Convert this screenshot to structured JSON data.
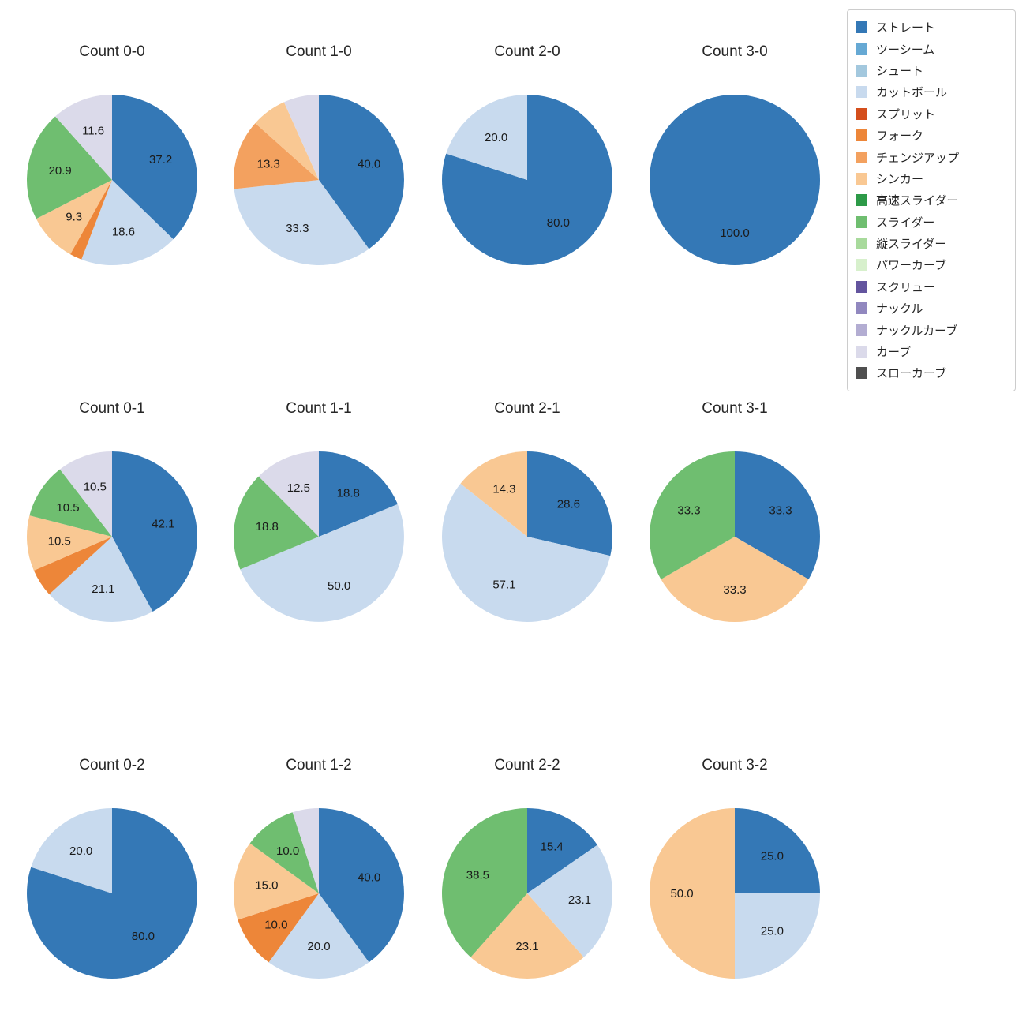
{
  "page": {
    "background": "#ffffff",
    "title_color": "#262626"
  },
  "palette": {
    "ストレート": "#3478b6",
    "ツーシーム": "#66a9d4",
    "シュート": "#a3c8de",
    "カットボール": "#c8daee",
    "スプリット": "#d44e1c",
    "フォーク": "#ed8639",
    "チェンジアップ": "#f3a15f",
    "シンカー": "#f9c893",
    "高速スライダー": "#2d9a48",
    "スライダー": "#6fbe70",
    "縦スライダー": "#a8da9c",
    "パワーカーブ": "#d7f0cc",
    "スクリュー": "#63549e",
    "ナックル": "#9188bf",
    "ナックルカーブ": "#b3add2",
    "カーブ": "#dbdaea",
    "スローカーブ": "#4f4f4f"
  },
  "legend": {
    "items": [
      {
        "label": "ストレート",
        "color": "#3478b6"
      },
      {
        "label": "ツーシーム",
        "color": "#66a9d4"
      },
      {
        "label": "シュート",
        "color": "#a3c8de"
      },
      {
        "label": "カットボール",
        "color": "#c8daee"
      },
      {
        "label": "スプリット",
        "color": "#d44e1c"
      },
      {
        "label": "フォーク",
        "color": "#ed8639"
      },
      {
        "label": "チェンジアップ",
        "color": "#f3a15f"
      },
      {
        "label": "シンカー",
        "color": "#f9c893"
      },
      {
        "label": "高速スライダー",
        "color": "#2d9a48"
      },
      {
        "label": "スライダー",
        "color": "#6fbe70"
      },
      {
        "label": "縦スライダー",
        "color": "#a8da9c"
      },
      {
        "label": "パワーカーブ",
        "color": "#d7f0cc"
      },
      {
        "label": "スクリュー",
        "color": "#63549e"
      },
      {
        "label": "ナックル",
        "color": "#9188bf"
      },
      {
        "label": "ナックルカーブ",
        "color": "#b3add2"
      },
      {
        "label": "カーブ",
        "color": "#dbdaea"
      },
      {
        "label": "スローカーブ",
        "color": "#4f4f4f"
      }
    ]
  },
  "chart_data": [
    {
      "type": "pie",
      "title": "Count 0-0",
      "start_angle_deg_from_top_clockwise": 0,
      "slices": [
        {
          "label": "ストレート",
          "value": 37.2,
          "show_label": true
        },
        {
          "label": "カットボール",
          "value": 18.6,
          "show_label": true
        },
        {
          "label": "フォーク",
          "value": 2.3,
          "show_label": false
        },
        {
          "label": "シンカー",
          "value": 9.3,
          "show_label": true
        },
        {
          "label": "スライダー",
          "value": 20.9,
          "show_label": true
        },
        {
          "label": "カーブ",
          "value": 11.6,
          "show_label": true
        }
      ]
    },
    {
      "type": "pie",
      "title": "Count 1-0",
      "start_angle_deg_from_top_clockwise": 0,
      "slices": [
        {
          "label": "ストレート",
          "value": 40.0,
          "show_label": true
        },
        {
          "label": "カットボール",
          "value": 33.3,
          "show_label": true
        },
        {
          "label": "チェンジアップ",
          "value": 13.3,
          "show_label": true
        },
        {
          "label": "シンカー",
          "value": 6.7,
          "show_label": false
        },
        {
          "label": "カーブ",
          "value": 6.7,
          "show_label": false
        }
      ]
    },
    {
      "type": "pie",
      "title": "Count 2-0",
      "start_angle_deg_from_top_clockwise": 0,
      "slices": [
        {
          "label": "ストレート",
          "value": 80.0,
          "show_label": true
        },
        {
          "label": "カットボール",
          "value": 20.0,
          "show_label": true
        }
      ]
    },
    {
      "type": "pie",
      "title": "Count 3-0",
      "start_angle_deg_from_top_clockwise": 0,
      "slices": [
        {
          "label": "ストレート",
          "value": 100.0,
          "show_label": true
        }
      ]
    },
    {
      "type": "pie",
      "title": "Count 0-1",
      "start_angle_deg_from_top_clockwise": 0,
      "slices": [
        {
          "label": "ストレート",
          "value": 42.1,
          "show_label": true
        },
        {
          "label": "カットボール",
          "value": 21.1,
          "show_label": true
        },
        {
          "label": "フォーク",
          "value": 5.3,
          "show_label": false
        },
        {
          "label": "シンカー",
          "value": 10.5,
          "show_label": true
        },
        {
          "label": "スライダー",
          "value": 10.5,
          "show_label": true
        },
        {
          "label": "カーブ",
          "value": 10.5,
          "show_label": true
        }
      ]
    },
    {
      "type": "pie",
      "title": "Count 1-1",
      "start_angle_deg_from_top_clockwise": 0,
      "slices": [
        {
          "label": "ストレート",
          "value": 18.8,
          "show_label": true
        },
        {
          "label": "カットボール",
          "value": 50.0,
          "show_label": true
        },
        {
          "label": "スライダー",
          "value": 18.8,
          "show_label": true
        },
        {
          "label": "カーブ",
          "value": 12.5,
          "show_label": true
        }
      ]
    },
    {
      "type": "pie",
      "title": "Count 2-1",
      "start_angle_deg_from_top_clockwise": 0,
      "slices": [
        {
          "label": "ストレート",
          "value": 28.6,
          "show_label": true
        },
        {
          "label": "カットボール",
          "value": 57.1,
          "show_label": true
        },
        {
          "label": "シンカー",
          "value": 14.3,
          "show_label": true
        }
      ]
    },
    {
      "type": "pie",
      "title": "Count 3-1",
      "start_angle_deg_from_top_clockwise": 0,
      "slices": [
        {
          "label": "ストレート",
          "value": 33.3,
          "show_label": true
        },
        {
          "label": "シンカー",
          "value": 33.3,
          "show_label": true
        },
        {
          "label": "スライダー",
          "value": 33.3,
          "show_label": true
        }
      ]
    },
    {
      "type": "pie",
      "title": "Count 0-2",
      "start_angle_deg_from_top_clockwise": 0,
      "slices": [
        {
          "label": "ストレート",
          "value": 80.0,
          "show_label": true
        },
        {
          "label": "カットボール",
          "value": 20.0,
          "show_label": true
        }
      ]
    },
    {
      "type": "pie",
      "title": "Count 1-2",
      "start_angle_deg_from_top_clockwise": 0,
      "slices": [
        {
          "label": "ストレート",
          "value": 40.0,
          "show_label": true
        },
        {
          "label": "カットボール",
          "value": 20.0,
          "show_label": true
        },
        {
          "label": "フォーク",
          "value": 10.0,
          "show_label": true
        },
        {
          "label": "シンカー",
          "value": 15.0,
          "show_label": true
        },
        {
          "label": "スライダー",
          "value": 10.0,
          "show_label": true
        },
        {
          "label": "カーブ",
          "value": 5.0,
          "show_label": false
        }
      ]
    },
    {
      "type": "pie",
      "title": "Count 2-2",
      "start_angle_deg_from_top_clockwise": 0,
      "slices": [
        {
          "label": "ストレート",
          "value": 15.4,
          "show_label": true
        },
        {
          "label": "カットボール",
          "value": 23.1,
          "show_label": true
        },
        {
          "label": "シンカー",
          "value": 23.1,
          "show_label": true
        },
        {
          "label": "スライダー",
          "value": 38.5,
          "show_label": true
        }
      ]
    },
    {
      "type": "pie",
      "title": "Count 3-2",
      "start_angle_deg_from_top_clockwise": 0,
      "slices": [
        {
          "label": "ストレート",
          "value": 25.0,
          "show_label": true
        },
        {
          "label": "カットボール",
          "value": 25.0,
          "show_label": true
        },
        {
          "label": "シンカー",
          "value": 50.0,
          "show_label": true
        }
      ]
    }
  ]
}
